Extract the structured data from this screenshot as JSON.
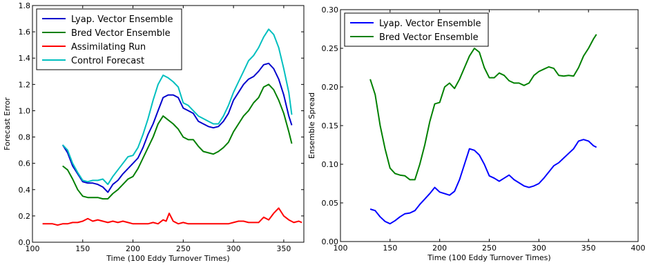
{
  "chart_data": [
    {
      "type": "line",
      "xlabel": "Time (100 Eddy Turnover Times)",
      "ylabel": "Forecast Error",
      "xlim": [
        100,
        370
      ],
      "ylim": [
        0.0,
        1.8
      ],
      "xticks": [
        100,
        150,
        200,
        250,
        300,
        350
      ],
      "xtick_labels": [
        "100",
        "150",
        "200",
        "250",
        "300",
        "350"
      ],
      "yticks": [
        0.0,
        0.2,
        0.4,
        0.6,
        0.8,
        1.0,
        1.2,
        1.4,
        1.6,
        1.8
      ],
      "ytick_labels": [
        "0.0",
        "0.2",
        "0.4",
        "0.6",
        "0.8",
        "1.0",
        "1.2",
        "1.4",
        "1.6",
        "1.8"
      ],
      "grid": false,
      "legend": "top-left",
      "series": [
        {
          "name": "Lyap. Vector Ensemble",
          "color": "#0000cc",
          "x": [
            130,
            135,
            140,
            145,
            150,
            155,
            160,
            165,
            170,
            175,
            180,
            185,
            190,
            195,
            200,
            205,
            210,
            215,
            220,
            225,
            230,
            235,
            240,
            245,
            250,
            255,
            260,
            265,
            270,
            275,
            280,
            285,
            290,
            295,
            300,
            305,
            310,
            315,
            320,
            325,
            330,
            335,
            340,
            345,
            350,
            355,
            358
          ],
          "y": [
            0.74,
            0.68,
            0.58,
            0.52,
            0.46,
            0.45,
            0.45,
            0.44,
            0.42,
            0.38,
            0.44,
            0.47,
            0.52,
            0.56,
            0.6,
            0.64,
            0.72,
            0.82,
            0.9,
            1.0,
            1.1,
            1.12,
            1.12,
            1.1,
            1.02,
            1.0,
            0.98,
            0.92,
            0.9,
            0.88,
            0.87,
            0.88,
            0.92,
            0.98,
            1.08,
            1.14,
            1.2,
            1.24,
            1.26,
            1.3,
            1.35,
            1.36,
            1.32,
            1.24,
            1.12,
            0.96,
            0.89
          ]
        },
        {
          "name": "Bred Vector Ensemble",
          "color": "#007f00",
          "x": [
            130,
            135,
            140,
            145,
            150,
            155,
            160,
            165,
            170,
            175,
            180,
            185,
            190,
            195,
            200,
            205,
            210,
            215,
            220,
            225,
            230,
            235,
            240,
            245,
            250,
            255,
            260,
            265,
            270,
            275,
            280,
            285,
            290,
            295,
            300,
            305,
            310,
            315,
            320,
            325,
            330,
            335,
            340,
            345,
            350,
            355,
            358
          ],
          "y": [
            0.58,
            0.55,
            0.48,
            0.4,
            0.35,
            0.34,
            0.34,
            0.34,
            0.33,
            0.33,
            0.37,
            0.4,
            0.44,
            0.48,
            0.5,
            0.56,
            0.64,
            0.72,
            0.8,
            0.9,
            0.96,
            0.93,
            0.9,
            0.86,
            0.8,
            0.78,
            0.78,
            0.73,
            0.69,
            0.68,
            0.67,
            0.69,
            0.72,
            0.76,
            0.84,
            0.9,
            0.96,
            1.0,
            1.06,
            1.1,
            1.18,
            1.2,
            1.16,
            1.08,
            0.98,
            0.84,
            0.75
          ]
        },
        {
          "name": "Assimilating Run",
          "color": "#ff0000",
          "x": [
            110,
            115,
            120,
            125,
            130,
            135,
            140,
            145,
            150,
            155,
            160,
            165,
            170,
            175,
            180,
            185,
            190,
            195,
            200,
            205,
            210,
            215,
            220,
            225,
            230,
            233,
            236,
            240,
            245,
            250,
            255,
            260,
            265,
            270,
            275,
            280,
            285,
            290,
            295,
            300,
            305,
            310,
            315,
            320,
            325,
            330,
            335,
            340,
            345,
            350,
            355,
            360,
            365,
            368
          ],
          "y": [
            0.14,
            0.14,
            0.14,
            0.13,
            0.14,
            0.14,
            0.15,
            0.15,
            0.16,
            0.18,
            0.16,
            0.17,
            0.16,
            0.15,
            0.16,
            0.15,
            0.16,
            0.15,
            0.14,
            0.14,
            0.14,
            0.14,
            0.15,
            0.14,
            0.17,
            0.16,
            0.22,
            0.16,
            0.14,
            0.15,
            0.14,
            0.14,
            0.14,
            0.14,
            0.14,
            0.14,
            0.14,
            0.14,
            0.14,
            0.15,
            0.16,
            0.16,
            0.15,
            0.15,
            0.15,
            0.19,
            0.17,
            0.22,
            0.26,
            0.2,
            0.17,
            0.15,
            0.16,
            0.15
          ]
        },
        {
          "name": "Control Forecast",
          "color": "#00bfbf",
          "x": [
            130,
            135,
            140,
            145,
            150,
            155,
            160,
            165,
            170,
            175,
            180,
            185,
            190,
            195,
            200,
            205,
            210,
            215,
            220,
            225,
            230,
            235,
            240,
            245,
            250,
            255,
            260,
            265,
            270,
            275,
            280,
            285,
            290,
            295,
            300,
            305,
            310,
            315,
            320,
            325,
            330,
            335,
            340,
            345,
            350,
            355,
            358
          ],
          "y": [
            0.74,
            0.7,
            0.6,
            0.53,
            0.47,
            0.46,
            0.47,
            0.47,
            0.48,
            0.44,
            0.5,
            0.55,
            0.6,
            0.65,
            0.66,
            0.72,
            0.82,
            0.94,
            1.08,
            1.2,
            1.27,
            1.25,
            1.22,
            1.18,
            1.06,
            1.04,
            1.0,
            0.96,
            0.94,
            0.92,
            0.9,
            0.9,
            0.96,
            1.04,
            1.14,
            1.22,
            1.3,
            1.38,
            1.42,
            1.48,
            1.56,
            1.62,
            1.58,
            1.48,
            1.32,
            1.14,
            0.97
          ]
        }
      ]
    },
    {
      "type": "line",
      "xlabel": "Time (100 Eddy Turnover Times)",
      "ylabel": "Ensemble Spread",
      "xlim": [
        100,
        400
      ],
      "ylim": [
        0.0,
        0.3
      ],
      "xticks": [
        100,
        150,
        200,
        250,
        300,
        350,
        400
      ],
      "xtick_labels": [
        "100",
        "150",
        "200",
        "250",
        "300",
        "350",
        "400"
      ],
      "yticks": [
        0.0,
        0.05,
        0.1,
        0.15,
        0.2,
        0.25,
        0.3
      ],
      "ytick_labels": [
        "0.00",
        "0.05",
        "0.10",
        "0.15",
        "0.20",
        "0.25",
        "0.30"
      ],
      "grid": false,
      "legend": "top-left",
      "series": [
        {
          "name": "Lyap. Vector Ensemble",
          "color": "#0000ff",
          "x": [
            130,
            135,
            140,
            145,
            150,
            155,
            160,
            165,
            170,
            175,
            180,
            185,
            190,
            195,
            200,
            205,
            210,
            215,
            220,
            225,
            230,
            235,
            240,
            245,
            250,
            255,
            260,
            265,
            270,
            275,
            280,
            285,
            290,
            295,
            300,
            305,
            310,
            315,
            320,
            325,
            330,
            335,
            340,
            345,
            350,
            355,
            358
          ],
          "y": [
            0.042,
            0.04,
            0.032,
            0.026,
            0.023,
            0.027,
            0.032,
            0.036,
            0.037,
            0.04,
            0.048,
            0.055,
            0.062,
            0.07,
            0.064,
            0.062,
            0.06,
            0.065,
            0.08,
            0.1,
            0.12,
            0.118,
            0.112,
            0.1,
            0.085,
            0.082,
            0.078,
            0.082,
            0.086,
            0.08,
            0.076,
            0.072,
            0.07,
            0.072,
            0.075,
            0.082,
            0.09,
            0.098,
            0.102,
            0.108,
            0.114,
            0.12,
            0.13,
            0.132,
            0.13,
            0.124,
            0.122
          ]
        },
        {
          "name": "Bred Vector Ensemble",
          "color": "#008000",
          "x": [
            130,
            135,
            140,
            145,
            150,
            155,
            160,
            165,
            170,
            175,
            180,
            185,
            190,
            195,
            200,
            205,
            210,
            215,
            220,
            225,
            230,
            235,
            240,
            245,
            250,
            255,
            260,
            265,
            270,
            275,
            280,
            285,
            290,
            295,
            300,
            305,
            310,
            315,
            320,
            325,
            330,
            335,
            340,
            345,
            350,
            355,
            358
          ],
          "y": [
            0.21,
            0.19,
            0.15,
            0.12,
            0.095,
            0.088,
            0.086,
            0.085,
            0.08,
            0.08,
            0.1,
            0.125,
            0.155,
            0.178,
            0.18,
            0.2,
            0.205,
            0.198,
            0.21,
            0.225,
            0.24,
            0.25,
            0.245,
            0.225,
            0.212,
            0.212,
            0.218,
            0.215,
            0.208,
            0.205,
            0.205,
            0.202,
            0.205,
            0.215,
            0.22,
            0.223,
            0.226,
            0.224,
            0.215,
            0.214,
            0.215,
            0.214,
            0.225,
            0.24,
            0.25,
            0.262,
            0.268
          ]
        }
      ]
    }
  ]
}
